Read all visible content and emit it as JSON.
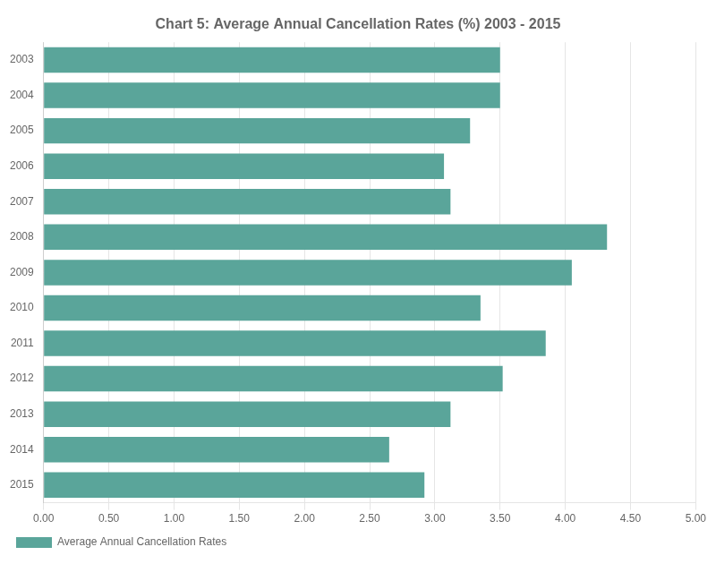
{
  "chart_data": {
    "type": "bar",
    "orientation": "horizontal",
    "title": "Chart 5: Average Annual Cancellation Rates (%) 2003 - 2015",
    "categories": [
      "2003",
      "2004",
      "2005",
      "2006",
      "2007",
      "2008",
      "2009",
      "2010",
      "2011",
      "2012",
      "2013",
      "2014",
      "2015"
    ],
    "series": [
      {
        "name": "Average Annual Cancellation Rates",
        "color": "#5aa59a",
        "values": [
          3.5,
          3.5,
          3.27,
          3.07,
          3.12,
          4.32,
          4.05,
          3.35,
          3.85,
          3.52,
          3.12,
          2.65,
          2.92
        ]
      }
    ],
    "xlim": [
      0.0,
      5.0
    ],
    "xticks": [
      {
        "value": 0.0,
        "label": "0.00"
      },
      {
        "value": 0.5,
        "label": "0.50"
      },
      {
        "value": 1.0,
        "label": "1.00"
      },
      {
        "value": 1.5,
        "label": "1.50"
      },
      {
        "value": 2.0,
        "label": "2.00"
      },
      {
        "value": 2.5,
        "label": "2.50"
      },
      {
        "value": 3.0,
        "label": "3.00"
      },
      {
        "value": 3.5,
        "label": "3.50"
      },
      {
        "value": 4.0,
        "label": "4.00"
      },
      {
        "value": 4.5,
        "label": "4.50"
      },
      {
        "value": 5.0,
        "label": "5.00"
      }
    ],
    "grid": true,
    "legend": "bottom"
  }
}
